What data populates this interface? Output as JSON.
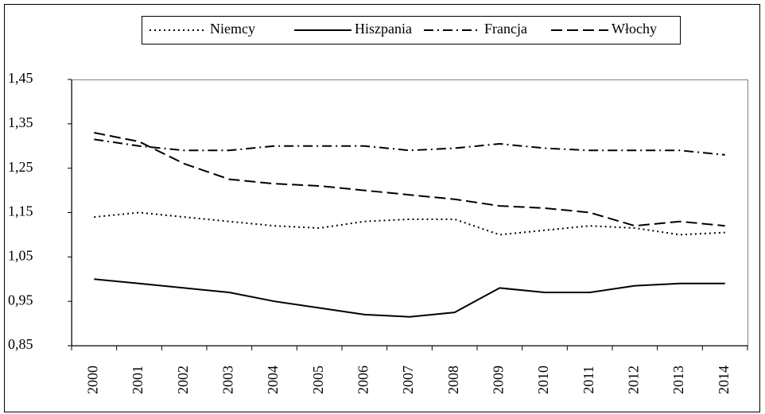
{
  "chart_data": {
    "type": "line",
    "categories": [
      "2000",
      "2001",
      "2002",
      "2003",
      "2004",
      "2005",
      "2006",
      "2007",
      "2008",
      "2009",
      "2010",
      "2011",
      "2012",
      "2013",
      "2014"
    ],
    "series": [
      {
        "name": "Niemcy",
        "color": "#000000",
        "dash": "dotted",
        "values": [
          1.14,
          1.15,
          1.14,
          1.13,
          1.12,
          1.115,
          1.13,
          1.135,
          1.135,
          1.1,
          1.11,
          1.12,
          1.115,
          1.1,
          1.105
        ]
      },
      {
        "name": "Hiszpania",
        "color": "#000000",
        "dash": "solid",
        "values": [
          1.0,
          0.99,
          0.98,
          0.97,
          0.95,
          0.935,
          0.92,
          0.915,
          0.925,
          0.98,
          0.97,
          0.97,
          0.985,
          0.99,
          0.99
        ]
      },
      {
        "name": "Francja",
        "color": "#000000",
        "dash": "dashdot",
        "values": [
          1.315,
          1.3,
          1.29,
          1.29,
          1.3,
          1.3,
          1.3,
          1.29,
          1.295,
          1.305,
          1.295,
          1.29,
          1.29,
          1.29,
          1.28
        ]
      },
      {
        "name": "Włochy",
        "color": "#000000",
        "dash": "dashed",
        "values": [
          1.33,
          1.31,
          1.26,
          1.225,
          1.215,
          1.21,
          1.2,
          1.19,
          1.18,
          1.165,
          1.16,
          1.15,
          1.12,
          1.13,
          1.12
        ]
      }
    ],
    "ylim": [
      0.85,
      1.45
    ],
    "yticks": [
      {
        "value": 0.85,
        "label": "0,85"
      },
      {
        "value": 0.95,
        "label": "0,95"
      },
      {
        "value": 1.05,
        "label": "1,05"
      },
      {
        "value": 1.15,
        "label": "1,15"
      },
      {
        "value": 1.25,
        "label": "1,25"
      },
      {
        "value": 1.35,
        "label": "1,35"
      },
      {
        "value": 1.45,
        "label": "1,45"
      }
    ],
    "grid": false,
    "legend": "top"
  }
}
